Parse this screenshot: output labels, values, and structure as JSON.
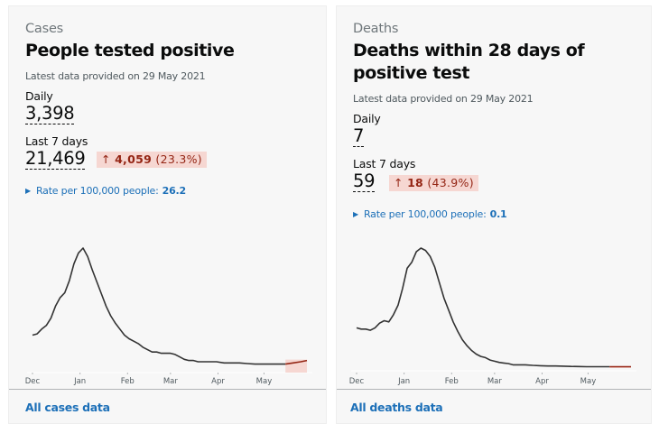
{
  "cards": [
    {
      "caption": "Cases",
      "title": "People tested positive",
      "latest": "Latest data provided on 29 May 2021",
      "daily_label": "Daily",
      "daily_value": "3,398",
      "week_label": "Last 7 days",
      "week_value": "21,469",
      "change_arrow": "↑",
      "change_value": "4,059",
      "change_pct": "(23.3%)",
      "rate_label": "Rate per 100,000 people:",
      "rate_value": "26.2",
      "link": "All cases data"
    },
    {
      "caption": "Deaths",
      "title": "Deaths within 28 days of positive test",
      "latest": "Latest data provided on 29 May 2021",
      "daily_label": "Daily",
      "daily_value": "7",
      "week_label": "Last 7 days",
      "week_value": "59",
      "change_arrow": "↑",
      "change_value": "18",
      "change_pct": "(43.9%)",
      "rate_label": "Rate per 100,000 people:",
      "rate_value": "0.1",
      "link": "All deaths data"
    }
  ],
  "colors": {
    "line": "#333333",
    "recent_line": "#942514",
    "recent_fill": "#f6d7d2",
    "link": "#1d70b8",
    "change_bg": "#f6d7d2",
    "change_text": "#942514"
  },
  "chart_data": [
    {
      "type": "line",
      "title": "People tested positive (7-day average, relative)",
      "x_ticks": [
        "Dec",
        "Jan",
        "Feb",
        "Mar",
        "Apr",
        "May"
      ],
      "x_range": [
        "2020-12-01",
        "2021-05-29"
      ],
      "series": [
        {
          "name": "Cases",
          "x_days": [
            0,
            3,
            6,
            9,
            12,
            15,
            18,
            21,
            24,
            27,
            30,
            33,
            36,
            39,
            42,
            45,
            48,
            51,
            54,
            57,
            60,
            63,
            66,
            69,
            72,
            75,
            78,
            81,
            84,
            87,
            90,
            93,
            96,
            99,
            102,
            105,
            108,
            111,
            114,
            117,
            120,
            125,
            130,
            135,
            140,
            145,
            150,
            155,
            160,
            165,
            170,
            175,
            179
          ],
          "values": [
            0.28,
            0.29,
            0.33,
            0.36,
            0.42,
            0.52,
            0.59,
            0.63,
            0.73,
            0.87,
            0.96,
            1.0,
            0.93,
            0.82,
            0.72,
            0.62,
            0.52,
            0.44,
            0.38,
            0.33,
            0.28,
            0.25,
            0.23,
            0.21,
            0.18,
            0.16,
            0.14,
            0.14,
            0.13,
            0.13,
            0.13,
            0.12,
            0.1,
            0.08,
            0.07,
            0.07,
            0.06,
            0.06,
            0.06,
            0.06,
            0.06,
            0.05,
            0.05,
            0.05,
            0.045,
            0.04,
            0.04,
            0.04,
            0.04,
            0.04,
            0.05,
            0.06,
            0.07
          ]
        }
      ],
      "highlight_recent_days": 14
    },
    {
      "type": "line",
      "title": "Deaths within 28 days of positive test (7-day average, relative)",
      "x_ticks": [
        "Dec",
        "Jan",
        "Feb",
        "Mar",
        "Apr",
        "May"
      ],
      "x_range": [
        "2020-12-01",
        "2021-05-29"
      ],
      "series": [
        {
          "name": "Deaths",
          "x_days": [
            0,
            3,
            6,
            9,
            12,
            15,
            18,
            21,
            24,
            27,
            30,
            33,
            36,
            39,
            42,
            45,
            48,
            51,
            54,
            57,
            60,
            63,
            66,
            69,
            72,
            75,
            78,
            81,
            84,
            87,
            90,
            93,
            96,
            99,
            102,
            105,
            110,
            115,
            120,
            125,
            130,
            135,
            140,
            145,
            150,
            155,
            160,
            165,
            170,
            175,
            179
          ],
          "values": [
            0.33,
            0.32,
            0.32,
            0.31,
            0.33,
            0.37,
            0.39,
            0.38,
            0.44,
            0.52,
            0.66,
            0.83,
            0.88,
            0.97,
            1.0,
            0.98,
            0.93,
            0.84,
            0.71,
            0.58,
            0.48,
            0.38,
            0.3,
            0.23,
            0.18,
            0.14,
            0.11,
            0.09,
            0.08,
            0.06,
            0.05,
            0.04,
            0.035,
            0.03,
            0.02,
            0.02,
            0.02,
            0.015,
            0.012,
            0.01,
            0.01,
            0.008,
            0.006,
            0.005,
            0.004,
            0.004,
            0.004,
            0.004,
            0.004,
            0.004,
            0.004
          ]
        }
      ],
      "highlight_recent_days": 14
    }
  ]
}
